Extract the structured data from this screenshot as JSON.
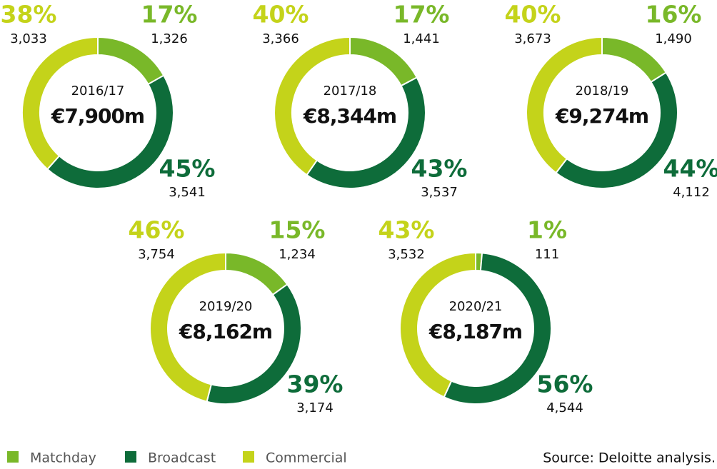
{
  "chart_data": [
    {
      "type": "pie",
      "title": "2016/17",
      "subtitle": "€7,900m",
      "categories": [
        "Matchday",
        "Broadcast",
        "Commercial"
      ],
      "colors": [
        "#79b829",
        "#0e6c3a",
        "#c4d31a"
      ],
      "values": [
        1326,
        3541,
        3033
      ],
      "value_labels": [
        "1,326",
        "3,541",
        "3,033"
      ],
      "percent_labels": [
        "17%",
        "45%",
        "38%"
      ]
    },
    {
      "type": "pie",
      "title": "2017/18",
      "subtitle": "€8,344m",
      "categories": [
        "Matchday",
        "Broadcast",
        "Commercial"
      ],
      "colors": [
        "#79b829",
        "#0e6c3a",
        "#c4d31a"
      ],
      "values": [
        1441,
        3537,
        3366
      ],
      "value_labels": [
        "1,441",
        "3,537",
        "3,366"
      ],
      "percent_labels": [
        "17%",
        "43%",
        "40%"
      ]
    },
    {
      "type": "pie",
      "title": "2018/19",
      "subtitle": "€9,274m",
      "categories": [
        "Matchday",
        "Broadcast",
        "Commercial"
      ],
      "colors": [
        "#79b829",
        "#0e6c3a",
        "#c4d31a"
      ],
      "values": [
        1490,
        4112,
        3673
      ],
      "value_labels": [
        "1,490",
        "4,112",
        "3,673"
      ],
      "percent_labels": [
        "16%",
        "44%",
        "40%"
      ]
    },
    {
      "type": "pie",
      "title": "2019/20",
      "subtitle": "€8,162m",
      "categories": [
        "Matchday",
        "Broadcast",
        "Commercial"
      ],
      "colors": [
        "#79b829",
        "#0e6c3a",
        "#c4d31a"
      ],
      "values": [
        1234,
        3174,
        3754
      ],
      "value_labels": [
        "1,234",
        "3,174",
        "3,754"
      ],
      "percent_labels": [
        "15%",
        "39%",
        "46%"
      ]
    },
    {
      "type": "pie",
      "title": "2020/21",
      "subtitle": "€8,187m",
      "categories": [
        "Matchday",
        "Broadcast",
        "Commercial"
      ],
      "colors": [
        "#79b829",
        "#0e6c3a",
        "#c4d31a"
      ],
      "values": [
        111,
        4544,
        3532
      ],
      "value_labels": [
        "111",
        "4,544",
        "3,532"
      ],
      "percent_labels": [
        "1%",
        "56%",
        "43%"
      ]
    }
  ],
  "source": "Source: Deloitte analysis."
}
